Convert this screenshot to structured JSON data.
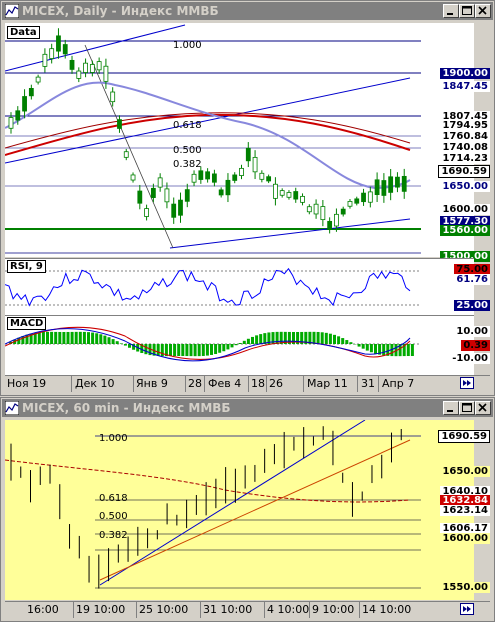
{
  "window1": {
    "title": "MICEX, Daily - Индекс ММВБ",
    "data_label": "Data",
    "fib_top": "1.000",
    "fib_labels": [
      "0.618",
      "0.500",
      "0.382"
    ],
    "price_tags": {
      "p1900": "1900.00",
      "p1847": "1847.45",
      "p1807": "1807.45",
      "p1794": "1794.95",
      "p1760": "1760.84",
      "p1740": "1740.08",
      "p1714": "1714.23",
      "p1690": "1690.59",
      "p1650": "1650.00",
      "p1600": "1600.00",
      "p1577": "1577.30",
      "p1560": "1560.00",
      "p1500": "1500.00"
    },
    "rsi_label": "RSI, 9",
    "rsi_ticks": {
      "r75": "75.00",
      "r61": "61.76",
      "r25": "25.00"
    },
    "macd_label": "MACD",
    "macd_ticks": {
      "m10": "10.00",
      "m039": "0.39",
      "m_10": "-10.00"
    },
    "x_labels": [
      "Ноя 19",
      "Дек 10",
      "Янв 9",
      "28",
      "Фев 4",
      "18",
      "26",
      "Мар 11",
      "31",
      "Апр 7"
    ]
  },
  "window2": {
    "title": "MICEX, 60 min - Индекс ММВБ",
    "fib_top": "1.000",
    "fib_labels": [
      "0.618",
      "0.500",
      "0.382"
    ],
    "price_tags": {
      "p1690": "1690.59",
      "p1650": "1650.00",
      "p1640": "1640.10",
      "p1632": "1632.84",
      "p1623": "1623.14",
      "p1606": "1606.17",
      "p1600": "1600.00",
      "p1550": "1550.00"
    },
    "x_labels": [
      "16:00",
      "19 10:00",
      "25 10:00",
      "31 10:00",
      "4 10:00",
      "9 10:00",
      "14 10:00"
    ]
  },
  "colors": {
    "title_inactive": "#808080",
    "chart_bg_daily": "#ffffff",
    "chart_bg_hourly": "#ffff99",
    "candle": "#008000",
    "line_blue": "#0000cc",
    "line_red": "#cc0000",
    "rsi_line": "#0000ff",
    "macd_hist": "#00aa00"
  }
}
